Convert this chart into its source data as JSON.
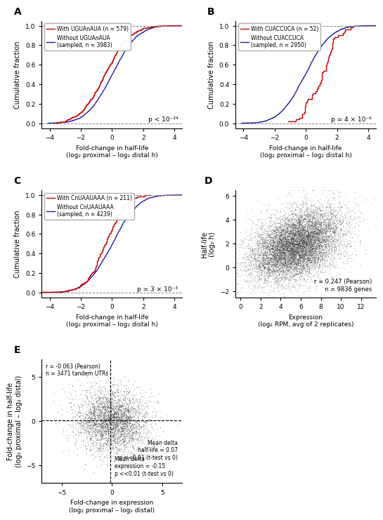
{
  "panel_A": {
    "label": "A",
    "with_motif_label": "With UGUAnAUA (n = 579)",
    "without_motif_label": "Without UGUAnAUA\n(sampled, n = 3983)",
    "with_n": 579,
    "without_n": 3983,
    "pvalue": "p < 10⁻²⁴",
    "xlim": [
      -4.5,
      4.5
    ],
    "ylim": [
      -0.05,
      1.05
    ],
    "xticks": [
      -4,
      -2,
      0,
      2,
      4
    ],
    "yticks": [
      0.0,
      0.2,
      0.4,
      0.6,
      0.8,
      1.0
    ],
    "xlabel": "Fold-change in half-life\n(log₂ proximal – log₂ distal h)",
    "ylabel": "Cumulative fraction",
    "with_color": "#cc0000",
    "without_color": "#2222aa",
    "red_shift": -0.35,
    "red_scale": 1.25,
    "blue_scale": 1.3
  },
  "panel_B": {
    "label": "B",
    "with_motif_label": "With CUACCUCA (n = 52)",
    "without_motif_label": "Without CUACCUCA\n(sampled, n = 2950)",
    "with_n": 52,
    "without_n": 2950,
    "pvalue": "p = 4 × 10⁻⁶",
    "xlim": [
      -4.5,
      4.5
    ],
    "ylim": [
      -0.05,
      1.05
    ],
    "xticks": [
      -4,
      -2,
      0,
      2,
      4
    ],
    "yticks": [
      0.0,
      0.2,
      0.4,
      0.6,
      0.8,
      1.0
    ],
    "xlabel": "Fold-change in half-life\n(log₂ proximal – log₂ distal h)",
    "ylabel": "Cumulative fraction",
    "with_color": "#cc0000",
    "without_color": "#2222aa",
    "red_shift": 1.0,
    "red_scale": 0.9,
    "blue_scale": 1.3
  },
  "panel_C": {
    "label": "C",
    "with_motif_label": "With CnUAAUAAA (n = 211)",
    "without_motif_label": "Without CnUAAUAAA\n(sampled, n = 4239)",
    "with_n": 211,
    "without_n": 4239,
    "pvalue": "p = 3 × 10⁻³",
    "xlim": [
      -4.5,
      4.5
    ],
    "ylim": [
      -0.05,
      1.05
    ],
    "xticks": [
      -4,
      -2,
      0,
      2,
      4
    ],
    "yticks": [
      0.0,
      0.2,
      0.4,
      0.6,
      0.8,
      1.0
    ],
    "xlabel": "Fold-change in half-life\n(log₂ proximal – log₂ distal h)",
    "ylabel": "Cumulative fraction",
    "with_color": "#cc0000",
    "without_color": "#2222aa",
    "red_shift": -0.45,
    "red_scale": 1.1,
    "blue_scale": 1.3
  },
  "panel_D": {
    "label": "D",
    "xlabel": "Expression\n(log₂ RPM, avg of 2 replicates)",
    "ylabel": "Half-life\n(log₂ h)",
    "xlim": [
      -0.5,
      13.5
    ],
    "ylim": [
      -2.5,
      6.5
    ],
    "xticks": [
      0,
      2,
      4,
      6,
      8,
      10,
      12
    ],
    "yticks": [
      -2,
      0,
      2,
      4,
      6
    ],
    "annotation": "r = 0.247 (Pearson)\nn = 9836 genes",
    "n_points": 9836,
    "dot_color": "#111111",
    "dot_size": 1.0
  },
  "panel_E": {
    "label": "E",
    "xlabel": "Fold-change in expression\n(log₂ proximal – log₂ distal)",
    "ylabel": "Fold-change in half-life\n(log₂ proximal – log₂ distal)",
    "xlim": [
      -7,
      7
    ],
    "ylim": [
      -7,
      7
    ],
    "xticks": [
      -5,
      0,
      5
    ],
    "yticks": [
      -5,
      0,
      5
    ],
    "annotation1": "r = -0.063 (Pearson)\nn = 3471 tandem UTRs",
    "annotation2": "Mean delta\nhalf-life = 0.07\np <<0.01 (t-test vs 0)",
    "annotation3": "Mean delta\nexpression = -0.15\np <<0.01 (t-test vs 0)",
    "n_points": 3471,
    "dot_color": "#111111",
    "dot_size": 1.0,
    "vline_x": -0.15,
    "hline_y": 0.07
  }
}
